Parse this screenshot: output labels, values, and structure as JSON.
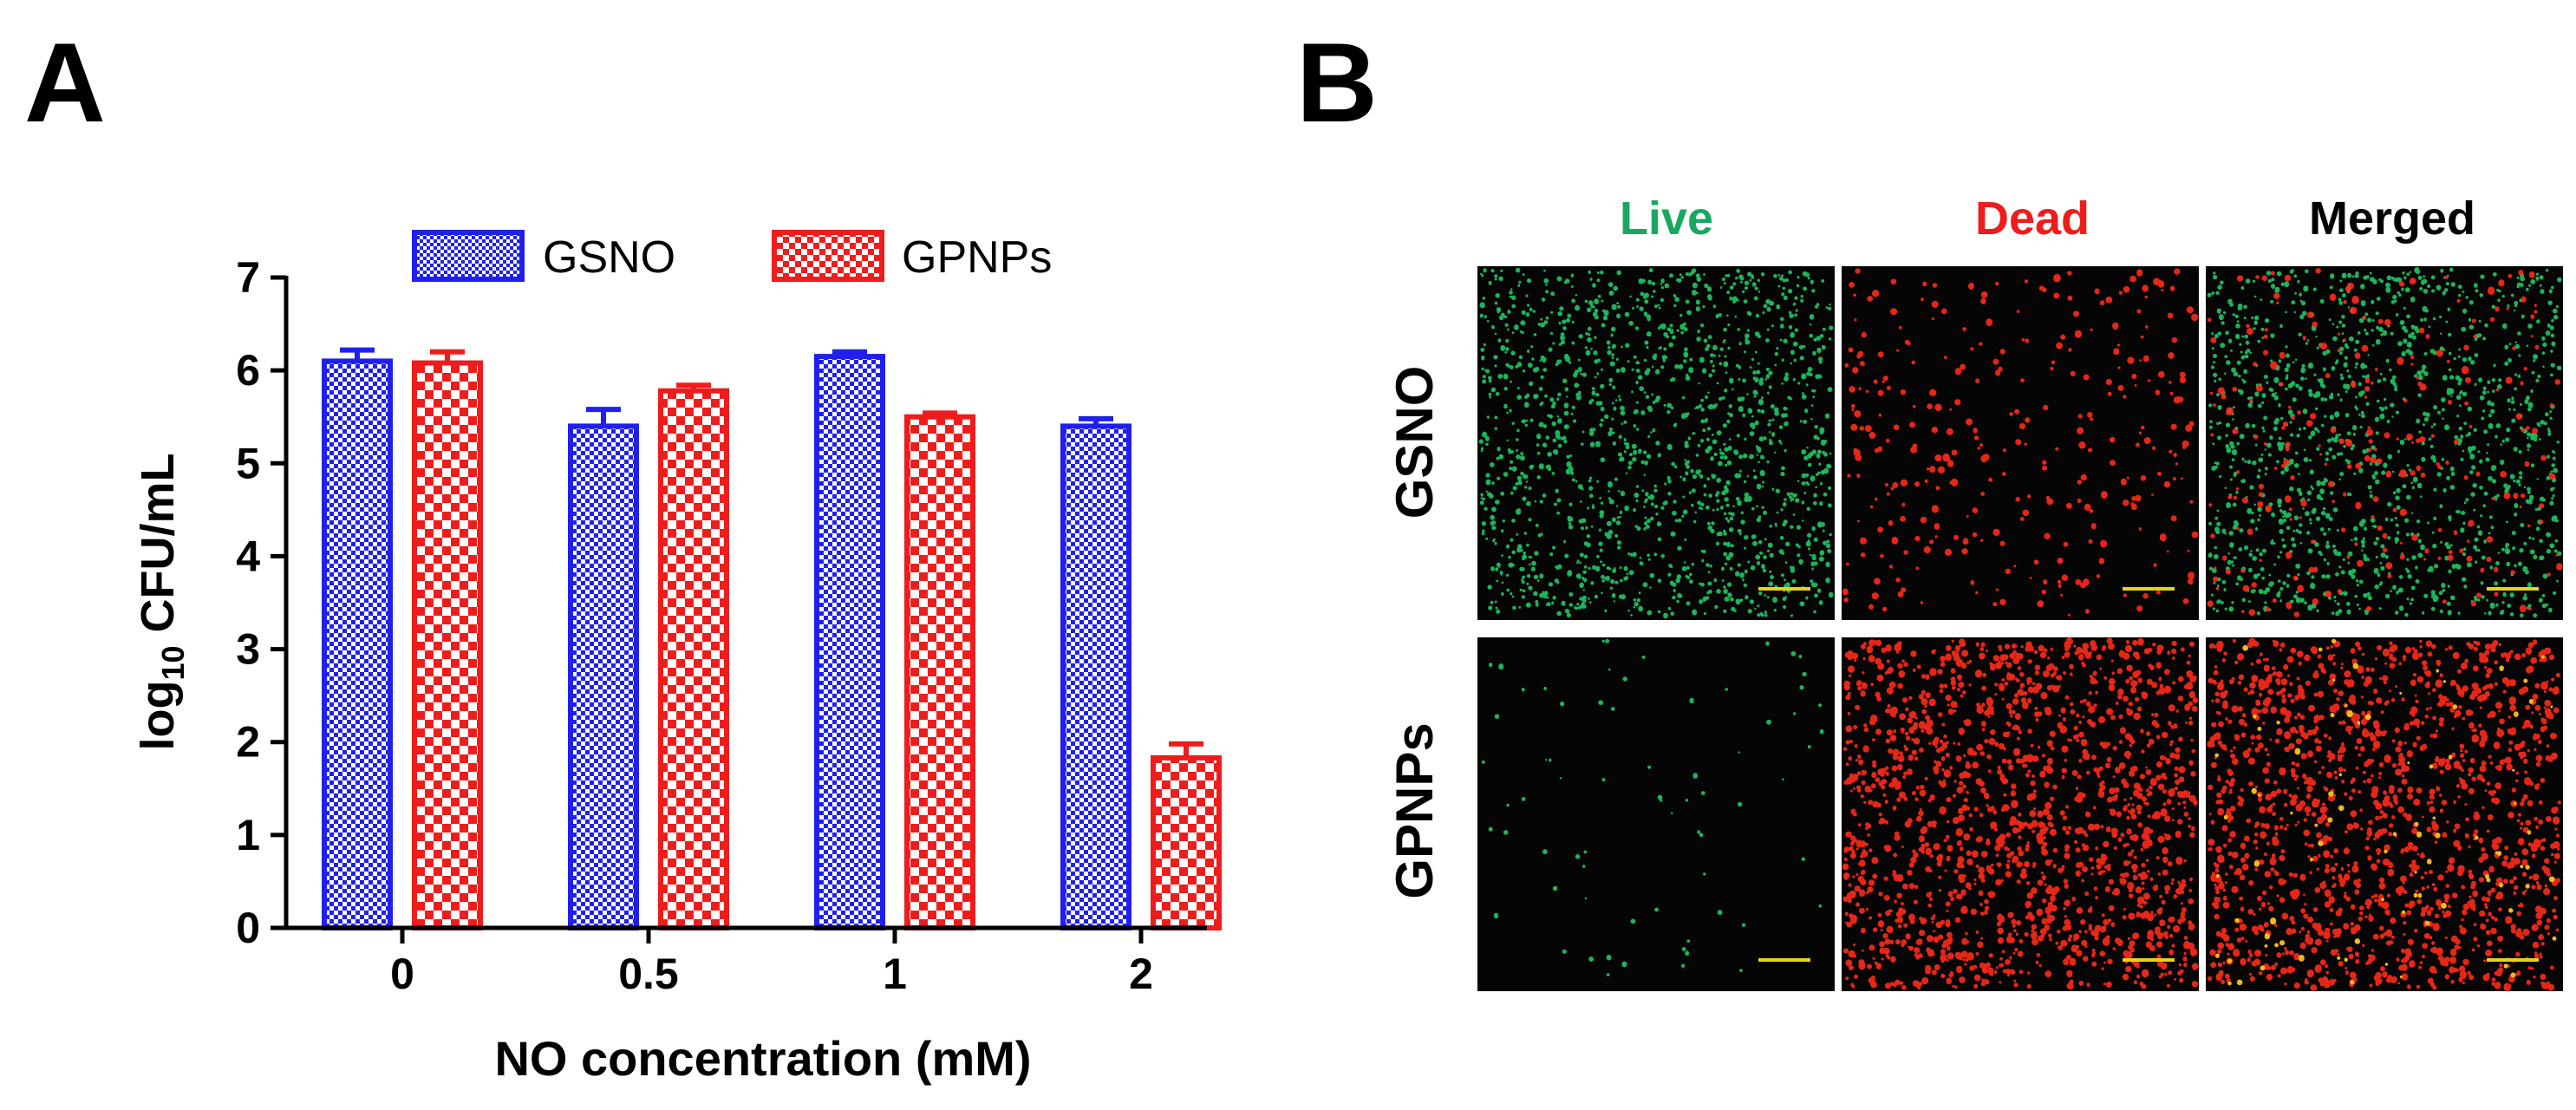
{
  "panels": {
    "a": {
      "letter": "A"
    },
    "b": {
      "letter": "B"
    }
  },
  "chart_data": {
    "type": "bar",
    "title": "",
    "xlabel": "NO concentration (mM)",
    "ylabel_main": "log",
    "ylabel_sub": "10",
    "ylabel_rest": " CFU/mL",
    "categories": [
      "0",
      "0.5",
      "1",
      "2"
    ],
    "ylim": [
      0,
      7
    ],
    "yticks": [
      "0",
      "1",
      "2",
      "3",
      "4",
      "5",
      "6",
      "7"
    ],
    "legend_position": "top",
    "series": [
      {
        "name": "GSNO",
        "color": "#2020ee",
        "pattern": "fine-checker",
        "values": [
          6.1,
          5.4,
          6.15,
          5.4
        ],
        "errors": [
          0.12,
          0.18,
          0.05,
          0.08
        ]
      },
      {
        "name": "GPNPs",
        "color": "#ee1c1c",
        "pattern": "coarse-checker",
        "values": [
          6.08,
          5.78,
          5.5,
          1.83
        ],
        "errors": [
          0.12,
          0.06,
          0.04,
          0.15
        ]
      }
    ]
  },
  "micrographs": {
    "columns": [
      {
        "label": "Live",
        "color": "#1aa860"
      },
      {
        "label": "Dead",
        "color": "#ee1c1c"
      },
      {
        "label": "Merged",
        "color": "#000000"
      }
    ],
    "rows": [
      {
        "label": "GSNO"
      },
      {
        "label": "GPNPs"
      }
    ],
    "stain_colors": {
      "live": "#22d36a",
      "dead": "#ff2a1a",
      "overlap": "#ffc21a",
      "scale_bar": "#e8d21a"
    }
  }
}
